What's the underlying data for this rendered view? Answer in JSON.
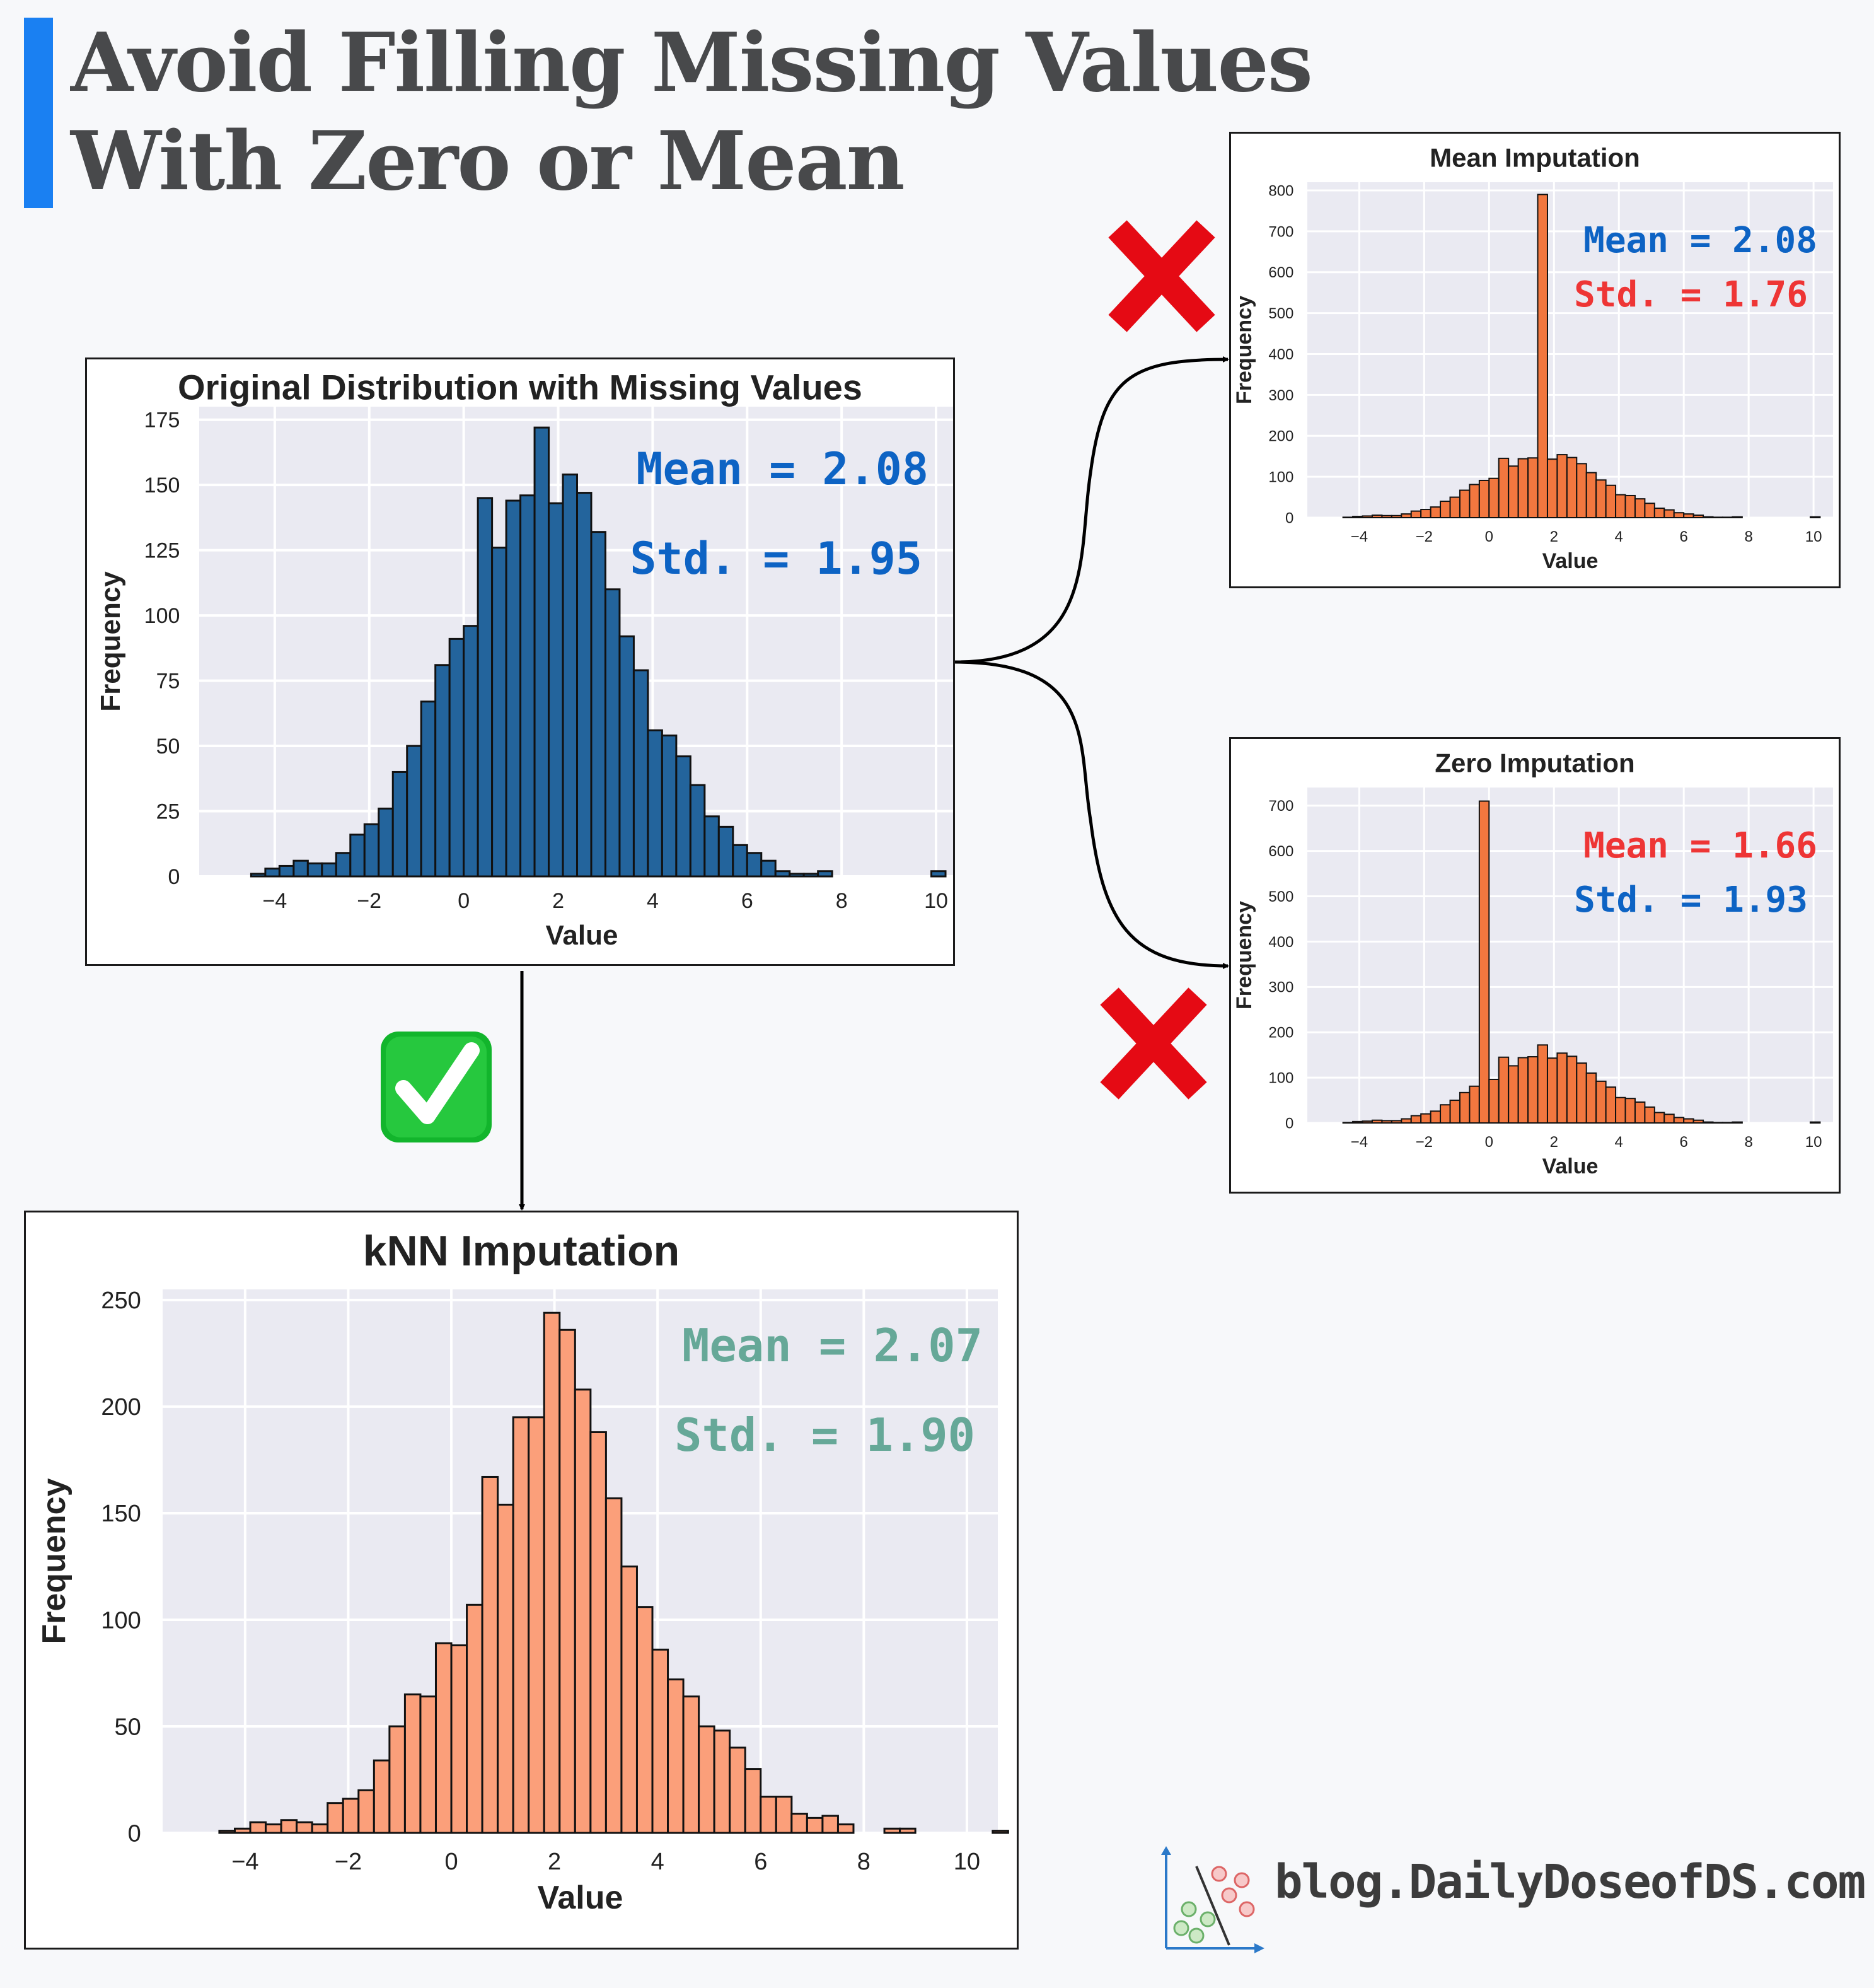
{
  "title": {
    "line1": "Avoid Filling Missing Values",
    "line2": "With Zero or Mean"
  },
  "footer": {
    "text": "blog.DailyDoseofDS.com",
    "logo_icon": "scatter-classifier-logo"
  },
  "colors": {
    "accent": "#1a80f2",
    "blue_stat": "#0d63c4",
    "red_stat": "#ee3535",
    "teal_stat": "#66a898",
    "cross": "#e50a14",
    "check_bg": "#12b52c",
    "orig_bar": "#23649c",
    "imputed_bar": "#f2773f",
    "knn_bar": "#fb9f7a"
  },
  "markers": {
    "bad_icon": "cross-mark-icon",
    "good_icon": "check-mark-icon"
  },
  "chart_data": [
    {
      "id": "orig",
      "type": "bar",
      "title": "Original Distribution with Missing Values",
      "xlabel": "Value",
      "ylabel": "Frequency",
      "xlim": [
        -5.6,
        10.6
      ],
      "ylim": [
        0,
        180
      ],
      "xticks": [
        -4,
        -2,
        0,
        2,
        4,
        6,
        8,
        10
      ],
      "yticks": [
        0,
        25,
        50,
        75,
        100,
        125,
        150,
        175
      ],
      "bin_start": -4.5,
      "bin_width": 0.3,
      "values": [
        1,
        3,
        4,
        6,
        5,
        5,
        9,
        16,
        20,
        26,
        40,
        50,
        67,
        81,
        91,
        96,
        145,
        126,
        144,
        146,
        172,
        143,
        154,
        147,
        132,
        110,
        92,
        79,
        56,
        54,
        46,
        35,
        23,
        19,
        12,
        9,
        6,
        2,
        1,
        1,
        2,
        0,
        0,
        0,
        0,
        0,
        0,
        0,
        2
      ],
      "grid": true,
      "annotations": [
        {
          "text": "Mean = 2.08",
          "color": "#0d63c4"
        },
        {
          "text": "Std. = 1.95",
          "color": "#0d63c4"
        }
      ]
    },
    {
      "id": "mean",
      "type": "bar",
      "title": "Mean Imputation",
      "xlabel": "Value",
      "ylabel": "Frequency",
      "xlim": [
        -5.6,
        10.6
      ],
      "ylim": [
        0,
        820
      ],
      "xticks": [
        -4,
        -2,
        0,
        2,
        4,
        6,
        8,
        10
      ],
      "yticks": [
        0,
        100,
        200,
        300,
        400,
        500,
        600,
        700,
        800
      ],
      "bin_start": -4.5,
      "bin_width": 0.3,
      "values": [
        1,
        3,
        4,
        6,
        5,
        5,
        9,
        16,
        20,
        26,
        40,
        50,
        67,
        81,
        91,
        96,
        145,
        126,
        144,
        146,
        790,
        143,
        154,
        147,
        132,
        110,
        92,
        79,
        56,
        54,
        46,
        35,
        23,
        19,
        12,
        9,
        6,
        2,
        1,
        1,
        2,
        0,
        0,
        0,
        0,
        0,
        0,
        0,
        2
      ],
      "grid": true,
      "annotations": [
        {
          "text": "Mean = 2.08",
          "color": "#0d63c4"
        },
        {
          "text": "Std. = 1.76",
          "color": "#ee3535"
        }
      ]
    },
    {
      "id": "zero",
      "type": "bar",
      "title": "Zero Imputation",
      "xlabel": "Value",
      "ylabel": "Frequency",
      "xlim": [
        -5.6,
        10.6
      ],
      "ylim": [
        0,
        740
      ],
      "xticks": [
        -4,
        -2,
        0,
        2,
        4,
        6,
        8,
        10
      ],
      "yticks": [
        0,
        100,
        200,
        300,
        400,
        500,
        600,
        700
      ],
      "bin_start": -4.5,
      "bin_width": 0.3,
      "values": [
        1,
        3,
        4,
        6,
        5,
        5,
        9,
        16,
        20,
        26,
        40,
        50,
        67,
        81,
        710,
        96,
        145,
        126,
        144,
        146,
        172,
        143,
        154,
        147,
        132,
        110,
        92,
        79,
        56,
        54,
        46,
        35,
        23,
        19,
        12,
        9,
        6,
        2,
        1,
        1,
        2,
        0,
        0,
        0,
        0,
        0,
        0,
        0,
        2
      ],
      "grid": true,
      "annotations": [
        {
          "text": "Mean = 1.66",
          "color": "#ee3535"
        },
        {
          "text": "Std. = 1.93",
          "color": "#0d63c4"
        }
      ]
    },
    {
      "id": "knn",
      "type": "bar",
      "title": "kNN Imputation",
      "xlabel": "Value",
      "ylabel": "Frequency",
      "xlim": [
        -5.6,
        10.6
      ],
      "ylim": [
        0,
        255
      ],
      "xticks": [
        -4,
        -2,
        0,
        2,
        4,
        6,
        8,
        10
      ],
      "yticks": [
        0,
        50,
        100,
        150,
        200,
        250
      ],
      "bin_start": -4.5,
      "bin_width": 0.3,
      "values": [
        1,
        2,
        5,
        4,
        6,
        5,
        4,
        14,
        16,
        20,
        34,
        50,
        65,
        64,
        89,
        88,
        107,
        167,
        154,
        195,
        195,
        244,
        236,
        208,
        188,
        157,
        125,
        106,
        86,
        72,
        64,
        50,
        48,
        40,
        30,
        17,
        17,
        9,
        7,
        8,
        4,
        0,
        0,
        2,
        2,
        0,
        0,
        0,
        0,
        0,
        1
      ],
      "grid": true,
      "annotations": [
        {
          "text": "Mean = 2.07",
          "color": "#66a898"
        },
        {
          "text": "Std. = 1.90",
          "color": "#66a898"
        }
      ]
    }
  ]
}
